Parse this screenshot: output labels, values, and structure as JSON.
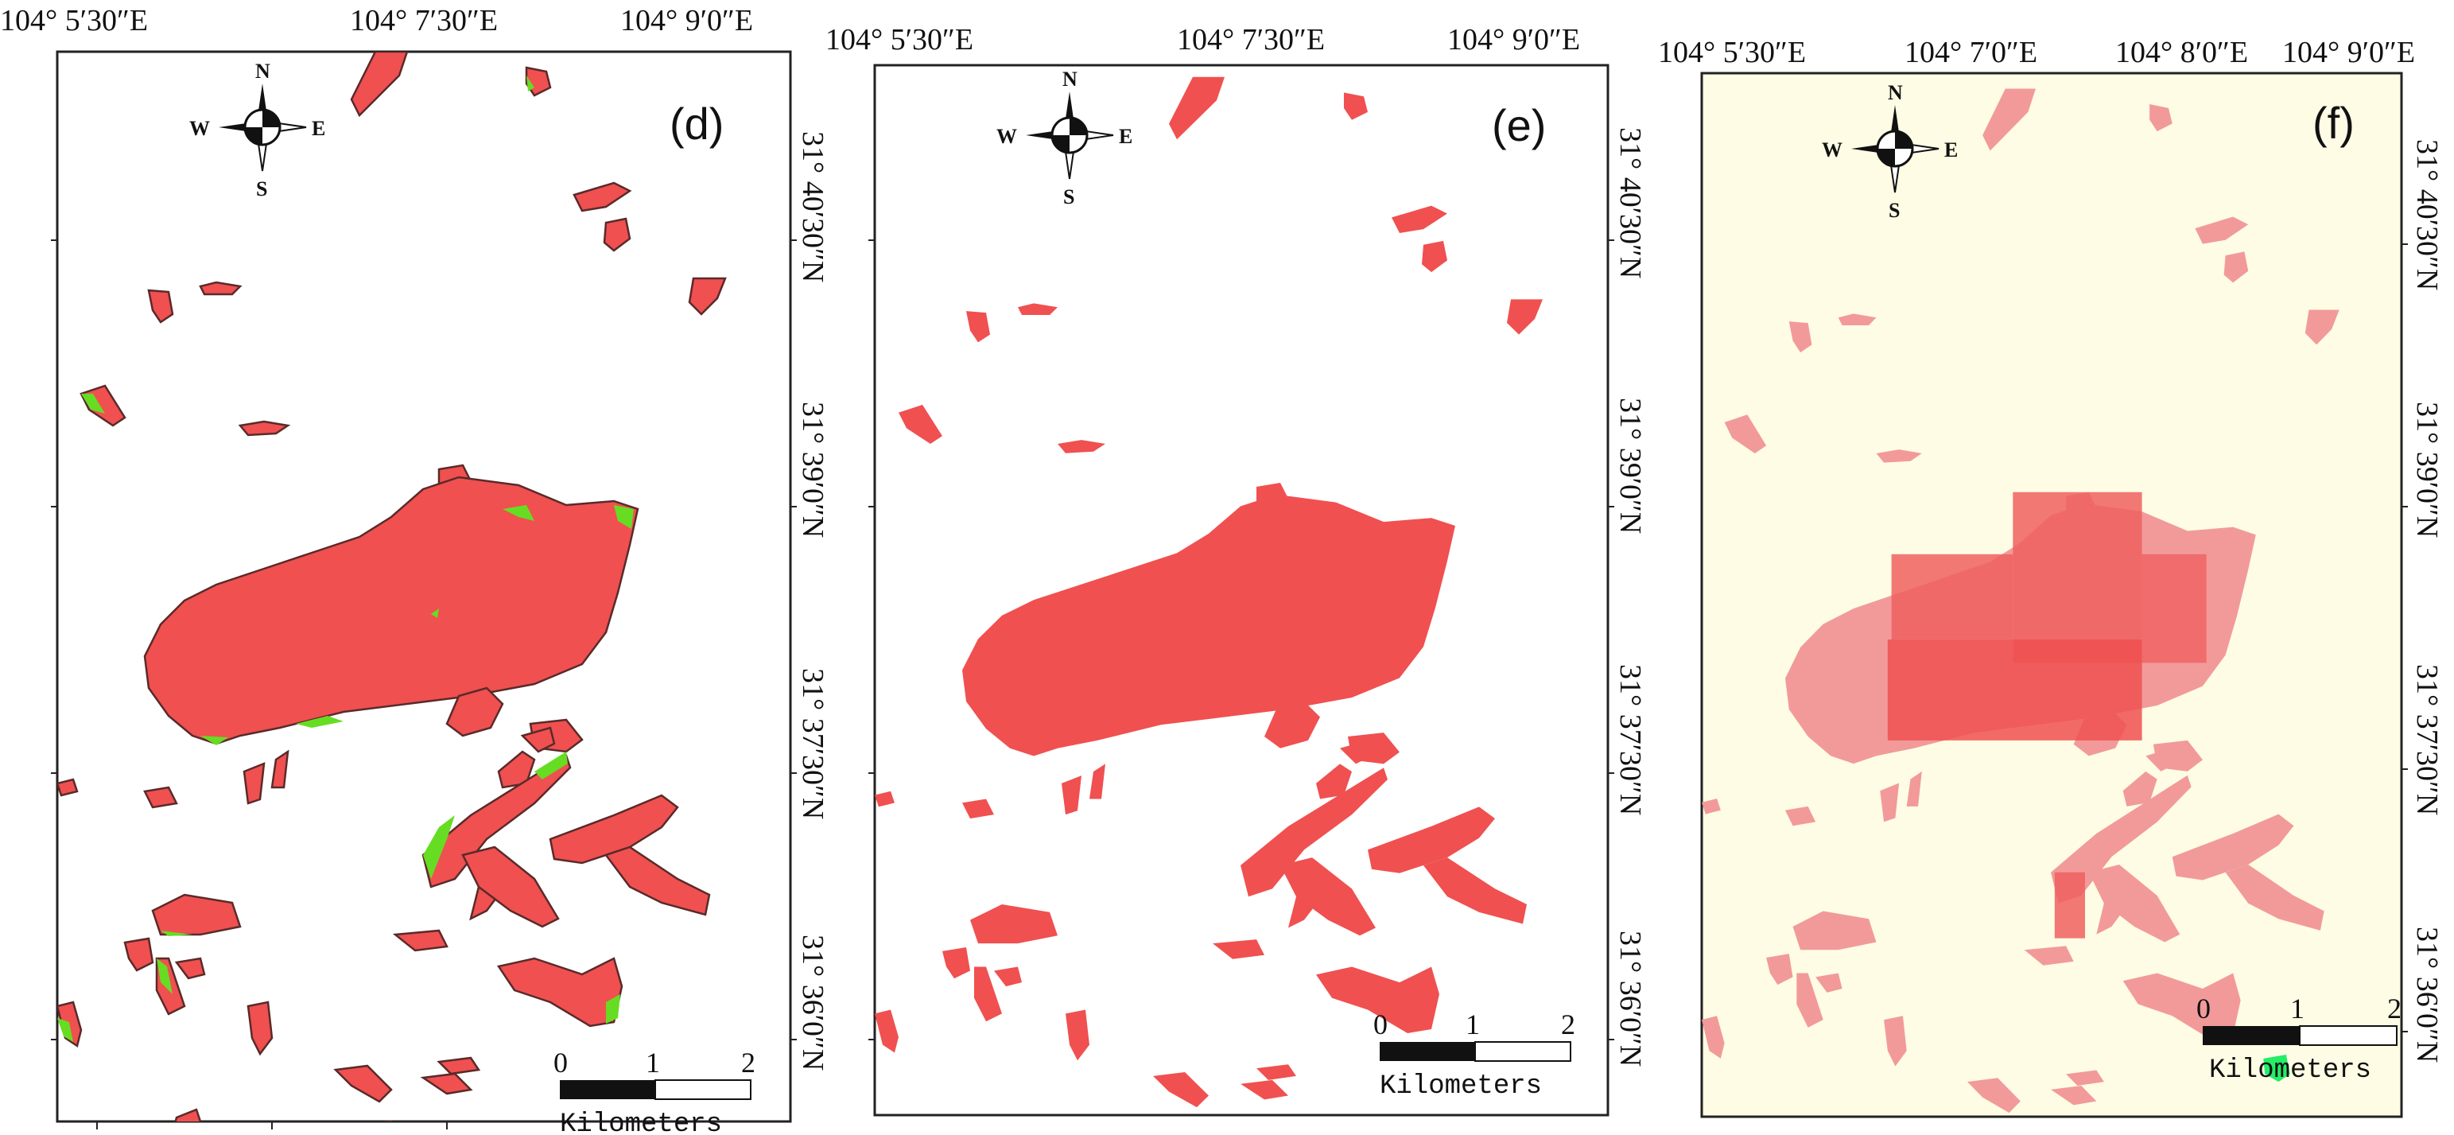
{
  "colors": {
    "patch_red": "#f05050",
    "patch_outline": "#5a2a2a",
    "edge_green": "#66dd22",
    "panel_f_background": "#fefce4",
    "patch_pink": "#f29a9a",
    "patch_pink_strong": "#f06060",
    "highlight_green": "#22ee66"
  },
  "compass": {
    "north": "N",
    "south": "S",
    "east": "E",
    "west": "W"
  },
  "scale_bar": {
    "ticks": [
      "0",
      "1",
      "2"
    ],
    "unit": "Kilometers"
  },
  "panels": [
    {
      "label": "(d)",
      "top_longitudes": [
        "104° 5′30″E",
        "104° 7′30″E",
        "104° 9′0″E"
      ],
      "right_latitudes": [
        "31° 40′30″N",
        "31° 39′0″N",
        "31° 37′30″N",
        "31° 36′0″N"
      ]
    },
    {
      "label": "(e)",
      "top_longitudes": [
        "104° 5′30″E",
        "104° 7′30″E",
        "104° 9′0″E"
      ],
      "right_latitudes": [
        "31° 40′30″N",
        "31° 39′0″N",
        "31° 37′30″N",
        "31° 36′0″N"
      ]
    },
    {
      "label": "(f)",
      "top_longitudes": [
        "104° 5′30″E",
        "104° 7′0″E",
        "104° 8′0″E",
        "104° 9′0″E"
      ],
      "right_latitudes": [
        "31° 40′30″N",
        "31° 39′0″N",
        "31° 37′30″N",
        "31° 36′0″N"
      ]
    }
  ]
}
